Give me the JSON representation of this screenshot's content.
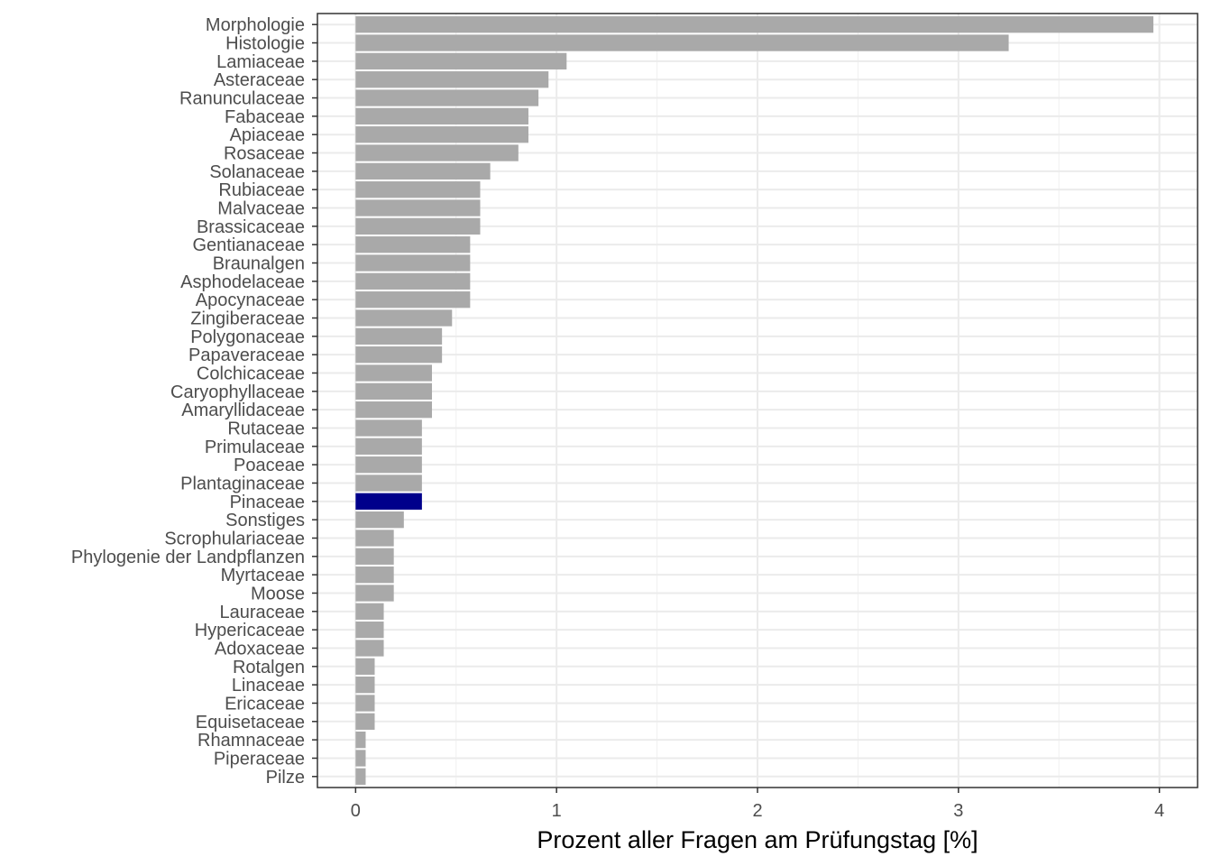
{
  "chart_data": {
    "type": "bar",
    "orientation": "horizontal",
    "title": "",
    "xlabel": "Prozent aller Fragen am Prüfungstag [%]",
    "ylabel": "",
    "xlim": [
      -0.19,
      4.19
    ],
    "xticks": [
      0,
      1,
      2,
      3,
      4
    ],
    "xtick_labels": [
      "0",
      "1",
      "2",
      "3",
      "4"
    ],
    "grid": true,
    "theme": "bw",
    "bar_color": "#A9A9A9",
    "highlight_color": "#00008B",
    "highlight_category": "Pinaceae",
    "categories": [
      "Morphologie",
      "Histologie",
      "Lamiaceae",
      "Asteraceae",
      "Ranunculaceae",
      "Fabaceae",
      "Apiaceae",
      "Rosaceae",
      "Solanaceae",
      "Rubiaceae",
      "Malvaceae",
      "Brassicaceae",
      "Gentianaceae",
      "Braunalgen",
      "Asphodelaceae",
      "Apocynaceae",
      "Zingiberaceae",
      "Polygonaceae",
      "Papaveraceae",
      "Colchicaceae",
      "Caryophyllaceae",
      "Amaryllidaceae",
      "Rutaceae",
      "Primulaceae",
      "Poaceae",
      "Plantaginaceae",
      "Pinaceae",
      "Sonstiges",
      "Scrophulariaceae",
      "Phylogenie der Landpflanzen",
      "Myrtaceae",
      "Moose",
      "Lauraceae",
      "Hypericaceae",
      "Adoxaceae",
      "Rotalgen",
      "Linaceae",
      "Ericaceae",
      "Equisetaceae",
      "Rhamnaceae",
      "Piperaceae",
      "Pilze"
    ],
    "values": [
      3.97,
      3.25,
      1.05,
      0.96,
      0.91,
      0.86,
      0.86,
      0.81,
      0.67,
      0.62,
      0.62,
      0.62,
      0.57,
      0.57,
      0.57,
      0.57,
      0.48,
      0.43,
      0.43,
      0.38,
      0.38,
      0.38,
      0.33,
      0.33,
      0.33,
      0.33,
      0.33,
      0.24,
      0.19,
      0.19,
      0.19,
      0.19,
      0.14,
      0.14,
      0.14,
      0.095,
      0.095,
      0.095,
      0.095,
      0.05,
      0.05,
      0.05
    ]
  }
}
